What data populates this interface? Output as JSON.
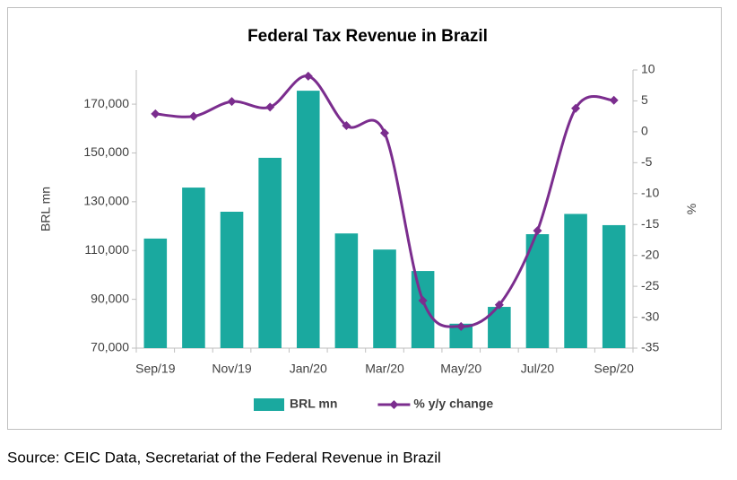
{
  "chart_data": {
    "type": "bar",
    "title": "Federal Tax Revenue in Brazil",
    "categories": [
      "Sep/19",
      null,
      "Nov/19",
      null,
      "Jan/20",
      null,
      "Mar/20",
      null,
      "May/20",
      null,
      "Jul/20",
      null,
      "Sep/20"
    ],
    "series": [
      {
        "name": "BRL mn",
        "type": "bar",
        "color": "#1aa99f",
        "values": [
          114900,
          135800,
          125900,
          148000,
          175500,
          117000,
          110400,
          101600,
          80000,
          86900,
          116700,
          125000,
          120400
        ]
      },
      {
        "name": "% y/y change",
        "type": "line",
        "axis": "y2",
        "color": "#7b2d8e",
        "values": [
          2.9,
          2.5,
          4.9,
          4.0,
          9.0,
          1.0,
          -0.2,
          -27.3,
          -31.5,
          -28.0,
          -16.0,
          3.8,
          5.1
        ]
      }
    ],
    "ylabel": "BRL mn",
    "y2label": "%",
    "ylim": [
      70000,
      184000
    ],
    "yticks": [
      {
        "value": 70000,
        "label": "70,000"
      },
      {
        "value": 90000,
        "label": "90,000"
      },
      {
        "value": 110000,
        "label": "110,000"
      },
      {
        "value": 130000,
        "label": "130,000"
      },
      {
        "value": 150000,
        "label": "150,000"
      },
      {
        "value": 170000,
        "label": "170,000"
      }
    ],
    "y2lim": [
      -35,
      10
    ],
    "y2ticks": [
      -35,
      -30,
      -25,
      -20,
      -15,
      -10,
      -5,
      0,
      5,
      10
    ],
    "grid": false,
    "legend": "bottom",
    "source": "Source: CEIC Data, Secretariat of the Federal Revenue in Brazil"
  }
}
